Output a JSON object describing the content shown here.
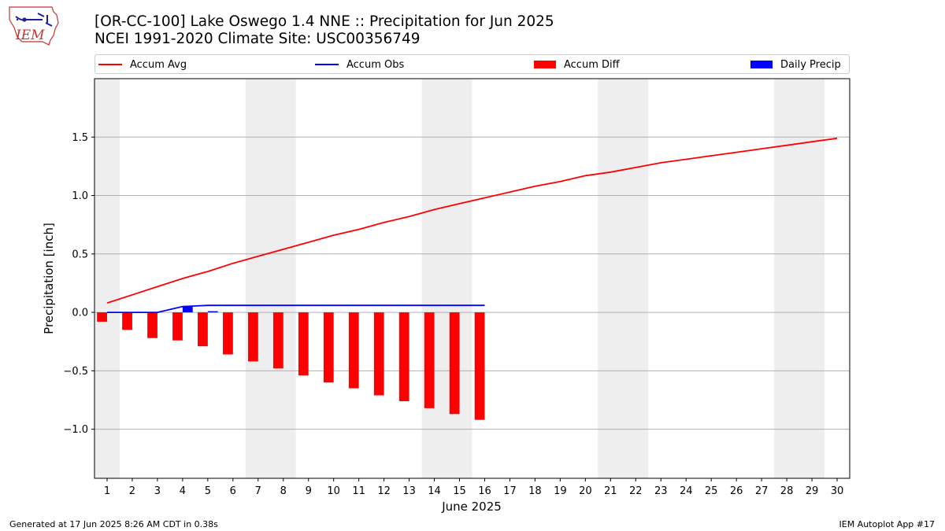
{
  "header": {
    "logo_text": "IEM",
    "title_line1": "[OR-CC-100] Lake Oswego 1.4 NNE :: Precipitation for Jun 2025",
    "title_line2": "NCEI 1991-2020 Climate Site: USC00356749"
  },
  "legend": [
    {
      "label": "Accum Avg",
      "kind": "line",
      "color": "#ff0000"
    },
    {
      "label": "Accum Obs",
      "kind": "line",
      "color": "#0000ff"
    },
    {
      "label": "Accum Diff",
      "kind": "box",
      "color": "#ff0000"
    },
    {
      "label": "Daily Precip",
      "kind": "box",
      "color": "#0000ff"
    }
  ],
  "footer": {
    "left": "Generated at 17 Jun 2025 8:26 AM CDT in 0.38s",
    "right": "IEM Autoplot App #17"
  },
  "chart_data": {
    "type": "bar",
    "xlabel": "June 2025",
    "ylabel": "Precipitation [inch]",
    "x": [
      1,
      2,
      3,
      4,
      5,
      6,
      7,
      8,
      9,
      10,
      11,
      12,
      13,
      14,
      15,
      16,
      17,
      18,
      19,
      20,
      21,
      22,
      23,
      24,
      25,
      26,
      27,
      28,
      29,
      30
    ],
    "xlim": [
      0.5,
      30.5
    ],
    "ylim": [
      -1.42,
      2.0
    ],
    "yticks": [
      -1.0,
      -0.5,
      0.0,
      0.5,
      1.0,
      1.5
    ],
    "ytick_labels": [
      "−1.0",
      "−0.5",
      "0.0",
      "0.5",
      "1.0",
      "1.5"
    ],
    "grid": "horizontal",
    "weekend_shading": [
      [
        0.5,
        1.5
      ],
      [
        6.5,
        8.5
      ],
      [
        13.5,
        15.5
      ],
      [
        20.5,
        22.5
      ],
      [
        27.5,
        29.5
      ]
    ],
    "series": [
      {
        "name": "Accum Avg",
        "type": "line",
        "color": "#ff0000",
        "x": [
          1,
          2,
          3,
          4,
          5,
          6,
          7,
          8,
          9,
          10,
          11,
          12,
          13,
          14,
          15,
          16,
          17,
          18,
          19,
          20,
          21,
          22,
          23,
          24,
          25,
          26,
          27,
          28,
          29,
          30
        ],
        "values": [
          0.08,
          0.15,
          0.22,
          0.29,
          0.35,
          0.42,
          0.48,
          0.54,
          0.6,
          0.66,
          0.71,
          0.77,
          0.82,
          0.88,
          0.93,
          0.98,
          1.03,
          1.08,
          1.12,
          1.17,
          1.2,
          1.24,
          1.28,
          1.31,
          1.34,
          1.37,
          1.4,
          1.43,
          1.46,
          1.49
        ]
      },
      {
        "name": "Accum Obs",
        "type": "line",
        "color": "#0000ff",
        "x": [
          1,
          2,
          3,
          4,
          5,
          6,
          7,
          8,
          9,
          10,
          11,
          12,
          13,
          14,
          15,
          16
        ],
        "values": [
          0.0,
          0.0,
          0.0,
          0.05,
          0.06,
          0.06,
          0.06,
          0.06,
          0.06,
          0.06,
          0.06,
          0.06,
          0.06,
          0.06,
          0.06,
          0.06
        ]
      },
      {
        "name": "Accum Diff",
        "type": "bar",
        "color": "#ff0000",
        "x": [
          1,
          2,
          3,
          4,
          5,
          6,
          7,
          8,
          9,
          10,
          11,
          12,
          13,
          14,
          15,
          16
        ],
        "values": [
          -0.08,
          -0.15,
          -0.22,
          -0.24,
          -0.29,
          -0.36,
          -0.42,
          -0.48,
          -0.54,
          -0.6,
          -0.65,
          -0.71,
          -0.76,
          -0.82,
          -0.87,
          -0.92
        ]
      },
      {
        "name": "Daily Precip",
        "type": "bar",
        "color": "#0000ff",
        "x": [
          1,
          2,
          3,
          4,
          5,
          6,
          7,
          8,
          9,
          10,
          11,
          12,
          13,
          14,
          15,
          16
        ],
        "values": [
          0,
          0,
          0,
          0.05,
          0.01,
          0,
          0,
          0,
          0,
          0,
          0,
          0,
          0,
          0,
          0,
          0
        ]
      }
    ]
  }
}
